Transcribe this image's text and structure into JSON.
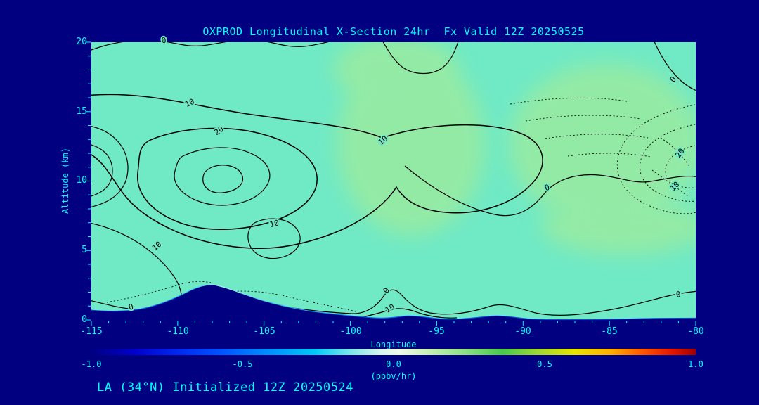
{
  "chart_data": {
    "type": "contour",
    "title": "OXPROD Longitudinal X-Section 24hr  Fx Valid 12Z 20250525",
    "xlabel": "Longitude",
    "ylabel": "Altitude (km)",
    "xlim": [
      -115,
      -80
    ],
    "ylim": [
      0,
      20
    ],
    "x_ticks": [
      "-115",
      "-110",
      "-105",
      "-100",
      "-95",
      "-90",
      "-85",
      "-80"
    ],
    "y_ticks": [
      "0",
      "5",
      "10",
      "15",
      "20"
    ],
    "contour_levels_labeled": [
      0,
      10,
      20
    ],
    "negative_contours": "dotted",
    "contour_labels": [
      {
        "text": "0",
        "lon": -110.8,
        "km": 20.1,
        "rot": -10
      },
      {
        "text": "10",
        "lon": -109.3,
        "km": 15.6,
        "rot": -25
      },
      {
        "text": "20",
        "lon": -107.6,
        "km": 13.6,
        "rot": -35
      },
      {
        "text": "10",
        "lon": -98.1,
        "km": 12.9,
        "rot": -40
      },
      {
        "text": "0",
        "lon": -81.3,
        "km": 17.3,
        "rot": -50
      },
      {
        "text": "20",
        "lon": -80.9,
        "km": 12.0,
        "rot": -55
      },
      {
        "text": "10",
        "lon": -81.2,
        "km": 9.6,
        "rot": -45
      },
      {
        "text": "0",
        "lon": -88.6,
        "km": 9.5,
        "rot": -20
      },
      {
        "text": "10",
        "lon": -104.4,
        "km": 6.9,
        "rot": -15
      },
      {
        "text": "10",
        "lon": -111.2,
        "km": 5.3,
        "rot": -40
      },
      {
        "text": "0",
        "lon": -81.0,
        "km": 1.8,
        "rot": -10
      },
      {
        "text": "0",
        "lon": -97.9,
        "km": 2.1,
        "rot": -60
      },
      {
        "text": "10",
        "lon": -97.7,
        "km": 0.8,
        "rot": -30
      },
      {
        "text": "0",
        "lon": -112.7,
        "km": 0.9,
        "rot": -15
      }
    ],
    "fill_colors": {
      "base": "#70E9C5",
      "enhanced": "#9AEBA0",
      "terrain": "#000080"
    },
    "colorbar": {
      "min": -1.0,
      "max": 1.0,
      "ticks": [
        "-1.0",
        "-0.5",
        "0.0",
        "0.5",
        "1.0"
      ],
      "units": "(ppbv/hr)",
      "gradient": [
        {
          "pos": 0,
          "color": "#000082"
        },
        {
          "pos": 7,
          "color": "#0000C8"
        },
        {
          "pos": 14,
          "color": "#0026EE"
        },
        {
          "pos": 22,
          "color": "#0057FF"
        },
        {
          "pos": 30,
          "color": "#0094FF"
        },
        {
          "pos": 37,
          "color": "#00C9F6"
        },
        {
          "pos": 43,
          "color": "#7FE6EC"
        },
        {
          "pos": 48,
          "color": "#D9F6F0"
        },
        {
          "pos": 51,
          "color": "#EFFAEC"
        },
        {
          "pos": 56,
          "color": "#C5F0B4"
        },
        {
          "pos": 62,
          "color": "#8BDF85"
        },
        {
          "pos": 68,
          "color": "#49C84E"
        },
        {
          "pos": 74,
          "color": "#9FD832"
        },
        {
          "pos": 80,
          "color": "#E8E400"
        },
        {
          "pos": 86,
          "color": "#FFAE00"
        },
        {
          "pos": 91,
          "color": "#FF5A00"
        },
        {
          "pos": 96,
          "color": "#E51600"
        },
        {
          "pos": 100,
          "color": "#9C0000"
        }
      ]
    }
  },
  "footer": {
    "text": "LA (34°N) Initialized 12Z 20250524"
  }
}
